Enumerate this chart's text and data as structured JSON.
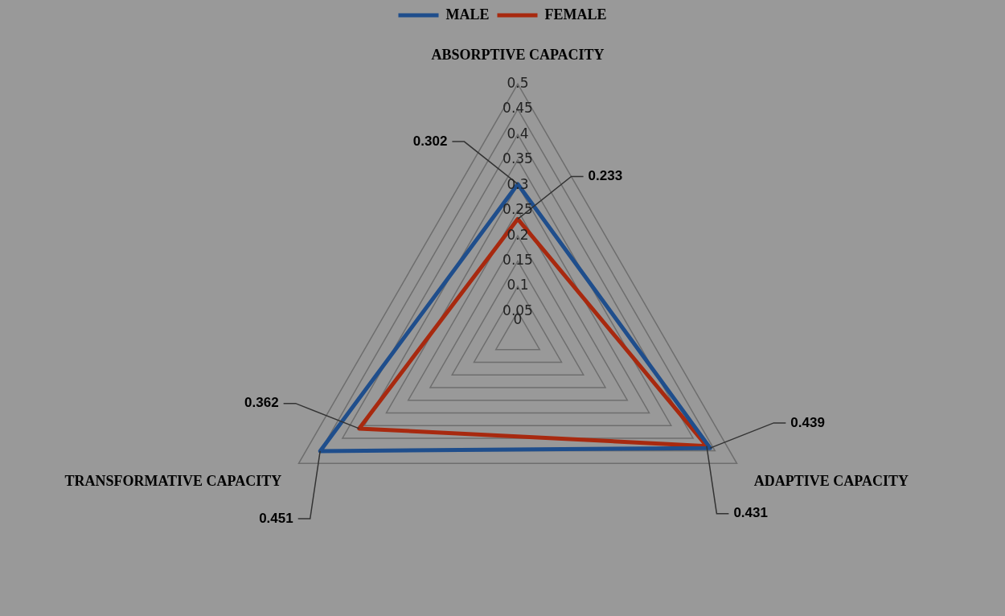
{
  "chart_data": {
    "type": "radar",
    "categories": [
      "ABSORPTIVE CAPACITY",
      "ADAPTIVE CAPACITY",
      "TRANSFORMATIVE CAPACITY"
    ],
    "series": [
      {
        "name": "MALE",
        "color": "#1f4e8c",
        "values": [
          0.302,
          0.439,
          0.451
        ],
        "value_labels": [
          "0.302",
          "0.439",
          "0.451"
        ]
      },
      {
        "name": "FEMALE",
        "color": "#a8290f",
        "values": [
          0.233,
          0.431,
          0.362
        ],
        "value_labels": [
          "0.233",
          "0.431",
          "0.362"
        ]
      }
    ],
    "ylim": [
      0,
      0.5
    ],
    "yticks": [
      0,
      0.05,
      0.1,
      0.15,
      0.2,
      0.25,
      0.3,
      0.35,
      0.4,
      0.45,
      0.5
    ],
    "grid": true,
    "legend": "top",
    "marker": "none",
    "line_style": "solid"
  }
}
